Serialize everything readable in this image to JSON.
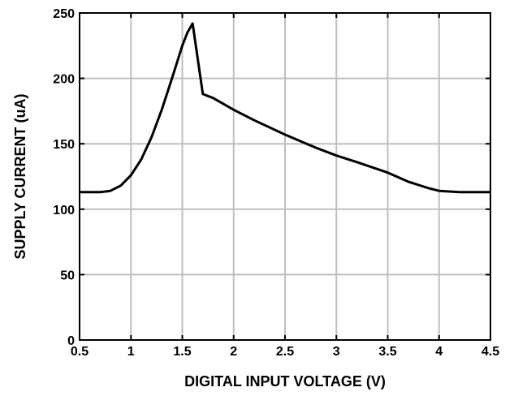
{
  "chart_data": {
    "type": "line",
    "title": "",
    "xlabel": "DIGITAL INPUT VOLTAGE (V)",
    "ylabel": "SUPPLY  CURRENT (uA)",
    "xlim": [
      0.5,
      4.5
    ],
    "ylim": [
      0,
      250
    ],
    "xticks": [
      "0.5",
      "1",
      "1.5",
      "2",
      "2.5",
      "3",
      "3.5",
      "4",
      "4.5"
    ],
    "yticks": [
      "0",
      "50",
      "100",
      "150",
      "200",
      "250"
    ],
    "grid": true,
    "series": [
      {
        "x": [
          0.5,
          0.6,
          0.7,
          0.8,
          0.9,
          1.0,
          1.1,
          1.2,
          1.3,
          1.4,
          1.5,
          1.55,
          1.6,
          1.65,
          1.7,
          1.8,
          2.0,
          2.2,
          2.5,
          2.8,
          3.0,
          3.2,
          3.5,
          3.7,
          3.9,
          4.0,
          4.2,
          4.35,
          4.5
        ],
        "values": [
          113,
          113,
          113,
          114,
          118,
          126,
          138,
          155,
          176,
          200,
          225,
          235,
          242,
          215,
          188,
          185,
          176,
          168,
          157,
          147,
          141,
          136,
          128,
          121,
          116,
          114,
          113,
          113,
          113
        ]
      }
    ],
    "colors": {
      "line": "#000000",
      "grid": "#bfbfbf",
      "axis": "#000000"
    }
  }
}
